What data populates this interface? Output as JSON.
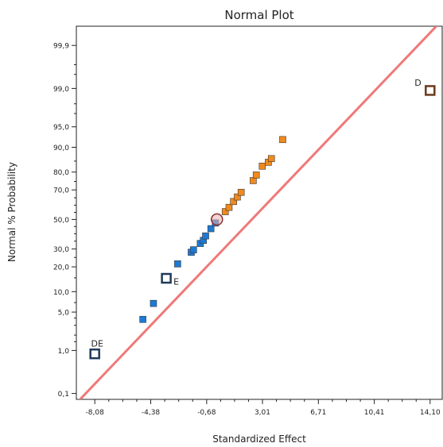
{
  "chart_data": {
    "type": "scatter",
    "title": "Normal Plot",
    "xlabel": "Standardized Effect",
    "ylabel": "Normal % Probability",
    "xlim": [
      -9.3,
      14.9
    ],
    "ylim_percent": [
      0.07,
      99.97
    ],
    "y_scale": "normal-probability",
    "x_ticks": [
      {
        "value": -8.08,
        "label": "-8,08"
      },
      {
        "value": -4.38,
        "label": "-4,38"
      },
      {
        "value": -0.68,
        "label": "-0,68"
      },
      {
        "value": 3.01,
        "label": "3,01"
      },
      {
        "value": 6.71,
        "label": "6,71"
      },
      {
        "value": 10.41,
        "label": "10,41"
      },
      {
        "value": 14.1,
        "label": "14,10"
      }
    ],
    "y_ticks": [
      {
        "value": 0.1,
        "label": "0,1"
      },
      {
        "value": 1,
        "label": "1,0"
      },
      {
        "value": 5,
        "label": "5,0"
      },
      {
        "value": 10,
        "label": "10,0"
      },
      {
        "value": 20,
        "label": "20,0"
      },
      {
        "value": 30,
        "label": "30,0"
      },
      {
        "value": 50,
        "label": "50,0"
      },
      {
        "value": 70,
        "label": "70,0"
      },
      {
        "value": 80,
        "label": "80,0"
      },
      {
        "value": 90,
        "label": "90,0"
      },
      {
        "value": 95,
        "label": "95,0"
      },
      {
        "value": 99,
        "label": "99,0"
      },
      {
        "value": 99.9,
        "label": "99,9"
      }
    ],
    "minor_y_ticks": [
      1.5,
      2,
      3,
      4,
      7,
      15,
      25,
      35,
      40,
      45,
      55,
      60,
      65,
      75,
      85,
      97,
      98,
      99.5,
      99.7
    ],
    "reference_line": {
      "color": "#f07878",
      "points": [
        [
          -9.3,
          0.055
        ],
        [
          14.9,
          99.98
        ]
      ]
    },
    "colors": {
      "negative": "#1c7ad6",
      "positive": "#f08a1c",
      "highlight": "#1f3a5c",
      "highlight_pos": "#6b3a1a",
      "center_circle": "#8a3030",
      "axis": "#222222"
    },
    "points": [
      {
        "x": -8.08,
        "y": 0.85,
        "group": "highlight",
        "label": "DE"
      },
      {
        "x": -4.9,
        "y": 3.8,
        "group": "negative",
        "label": ""
      },
      {
        "x": -4.2,
        "y": 6.8,
        "group": "negative",
        "label": ""
      },
      {
        "x": -3.35,
        "y": 14.8,
        "group": "highlight",
        "label": "E"
      },
      {
        "x": -2.6,
        "y": 21.5,
        "group": "negative",
        "label": ""
      },
      {
        "x": -1.7,
        "y": 28.0,
        "group": "negative",
        "label": ""
      },
      {
        "x": -1.55,
        "y": 29.5,
        "group": "negative",
        "label": ""
      },
      {
        "x": -1.1,
        "y": 33.5,
        "group": "negative",
        "label": ""
      },
      {
        "x": -0.9,
        "y": 35.5,
        "group": "negative",
        "label": ""
      },
      {
        "x": -0.75,
        "y": 38.5,
        "group": "negative",
        "label": ""
      },
      {
        "x": -0.4,
        "y": 43.5,
        "group": "negative",
        "label": ""
      },
      {
        "x": -0.1,
        "y": 47.5,
        "group": "negative",
        "label": ""
      },
      {
        "x": 0.0,
        "y": 50.0,
        "group": "center",
        "label": ""
      },
      {
        "x": 0.55,
        "y": 55.5,
        "group": "positive",
        "label": ""
      },
      {
        "x": 0.8,
        "y": 58.5,
        "group": "positive",
        "label": ""
      },
      {
        "x": 1.1,
        "y": 62.5,
        "group": "positive",
        "label": ""
      },
      {
        "x": 1.35,
        "y": 65.5,
        "group": "positive",
        "label": ""
      },
      {
        "x": 1.6,
        "y": 68.5,
        "group": "positive",
        "label": ""
      },
      {
        "x": 2.4,
        "y": 75.5,
        "group": "positive",
        "label": ""
      },
      {
        "x": 2.6,
        "y": 78.5,
        "group": "positive",
        "label": ""
      },
      {
        "x": 3.0,
        "y": 82.8,
        "group": "positive",
        "label": ""
      },
      {
        "x": 3.4,
        "y": 84.5,
        "group": "positive",
        "label": ""
      },
      {
        "x": 3.6,
        "y": 86.0,
        "group": "positive",
        "label": ""
      },
      {
        "x": 4.35,
        "y": 92.2,
        "group": "positive",
        "label": ""
      },
      {
        "x": 14.1,
        "y": 98.9,
        "group": "highlight_pos",
        "label": "D"
      }
    ]
  }
}
